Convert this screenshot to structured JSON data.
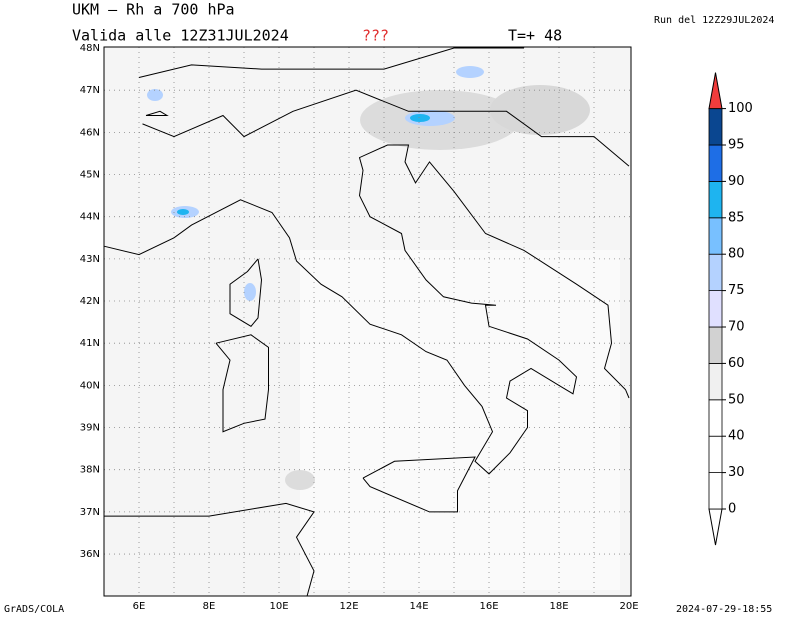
{
  "header": {
    "title": "UKM – Rh a 700 hPa",
    "valid": "Valida alle 12Z31JUL2024",
    "flag": "???",
    "lead": "T=+ 48",
    "run": "Run del 12Z29JUL2024"
  },
  "map": {
    "lat_labels": [
      "48N",
      "47N",
      "46N",
      "45N",
      "44N",
      "43N",
      "42N",
      "41N",
      "40N",
      "39N",
      "38N",
      "37N",
      "36N"
    ],
    "lon_labels": [
      "6E",
      "8E",
      "10E",
      "12E",
      "14E",
      "16E",
      "18E",
      "20E"
    ]
  },
  "colorbar": {
    "labels": [
      "0",
      "30",
      "40",
      "50",
      "60",
      "70",
      "75",
      "80",
      "85",
      "90",
      "95",
      "100"
    ],
    "colors": [
      "#ffffff",
      "#ffffff",
      "#ffffff",
      "#f0f0f0",
      "#d2d2d2",
      "#e0e0ff",
      "#b4d2ff",
      "#78c0ff",
      "#1eb4f0",
      "#1e6ee6",
      "#0a4690"
    ],
    "over_color": "#f03c3c"
  },
  "footer": {
    "left": "GrADS/COLA",
    "right": "2024-07-29-18:55"
  }
}
